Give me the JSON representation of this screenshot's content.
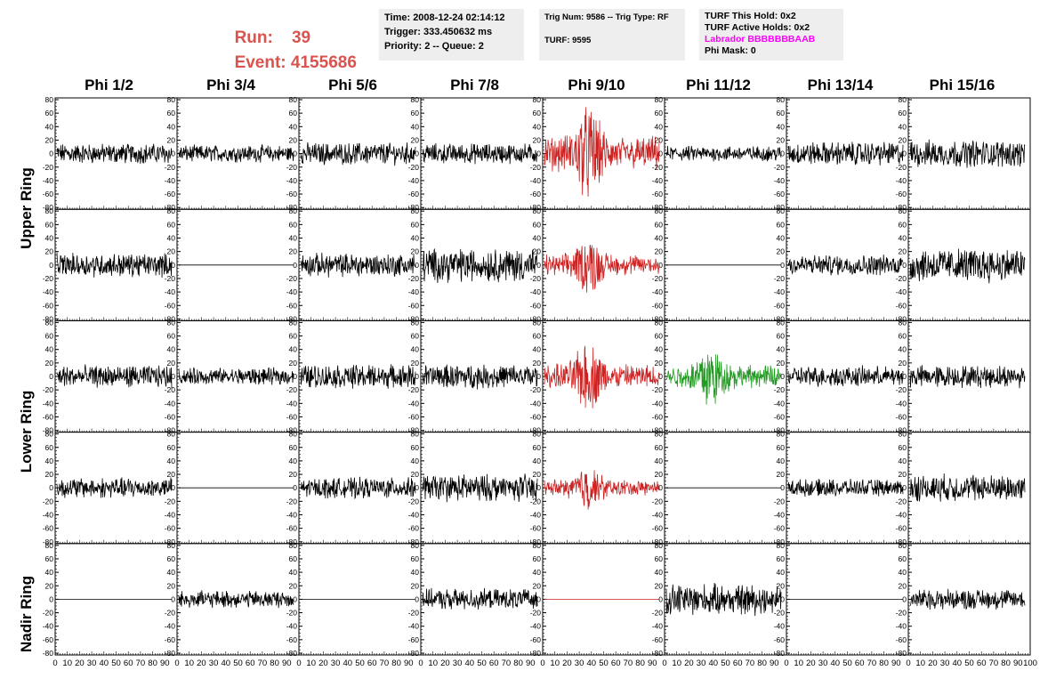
{
  "header": {
    "run_label": "Run:",
    "run_value": "39",
    "event_label": "Event:",
    "event_value": "4155686"
  },
  "time_box": {
    "time": "Time: 2008-12-24 02:14:12",
    "trigger": "Trigger: 333.450632 ms",
    "priority": "Priority: 2 -- Queue: 2"
  },
  "trig_box": {
    "trig": "Trig Num: 9586 -- Trig Type: RF",
    "turf": "TURF: 9595"
  },
  "turf_box": {
    "this_hold": "TURF This Hold: 0x2",
    "active_holds": "TURF Active Holds: 0x2",
    "labrador": "Labrador BBBBBBBAAB",
    "phi_mask": "Phi Mask: 0"
  },
  "colors": {
    "run_text": "#d9534f",
    "labrador_text": "#ff00ff",
    "triggered_trace": "#cc2222",
    "green_trace": "#229922",
    "normal_trace": "#000000",
    "info_bg": "#eeeeee"
  },
  "columns": [
    "Phi 1/2",
    "Phi 3/4",
    "Phi 5/6",
    "Phi 7/8",
    "Phi 9/10",
    "Phi 11/12",
    "Phi 13/14",
    "Phi 15/16"
  ],
  "rings": [
    "Upper Ring",
    "Lower Ring",
    "Nadir Ring"
  ],
  "y_ticks": [
    "80",
    "60",
    "40",
    "20",
    "0",
    "-20",
    "-40",
    "-60",
    "-80"
  ],
  "x_ticks": [
    "0",
    "10",
    "20",
    "30",
    "40",
    "50",
    "60",
    "70",
    "80",
    "90",
    "100"
  ],
  "panels": {
    "rows": [
      [
        "black",
        "black",
        "black",
        "black",
        "red",
        "black",
        "black",
        "black"
      ],
      [
        "black",
        "flat",
        "black",
        "black",
        "red",
        "flat",
        "black",
        "black"
      ],
      [
        "black",
        "black",
        "black",
        "black",
        "red",
        "green",
        "black",
        "black"
      ],
      [
        "black",
        "flat",
        "black",
        "black",
        "red",
        "flat",
        "black",
        "black"
      ],
      [
        "flat",
        "black",
        "flat",
        "black",
        "redflat",
        "black",
        "flat",
        "black"
      ]
    ],
    "amplitude": [
      [
        12,
        10,
        13,
        12,
        30,
        9,
        14,
        16
      ],
      [
        14,
        0,
        14,
        20,
        18,
        0,
        12,
        20
      ],
      [
        13,
        10,
        14,
        14,
        22,
        20,
        12,
        13
      ],
      [
        12,
        0,
        12,
        16,
        14,
        0,
        10,
        16
      ],
      [
        0,
        10,
        0,
        12,
        0,
        18,
        0,
        12
      ]
    ]
  }
}
